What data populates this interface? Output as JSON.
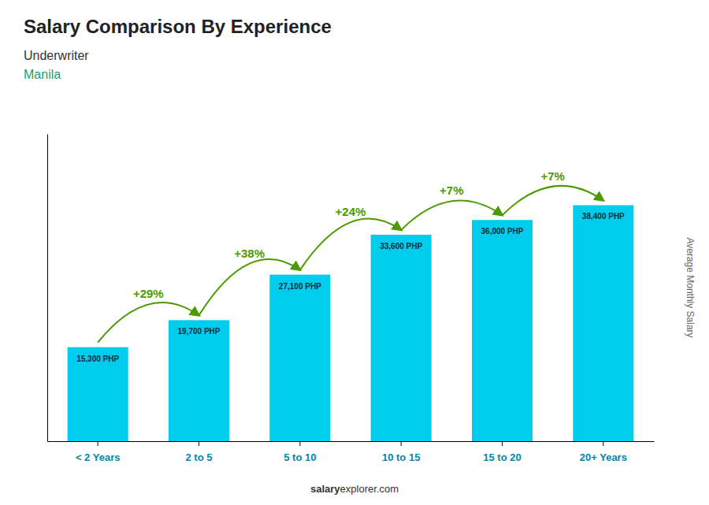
{
  "chart_data": {
    "type": "bar",
    "title": "Salary Comparison By Experience",
    "subtitle": "Underwriter",
    "city": "Manila",
    "categories": [
      "< 2 Years",
      "2 to 5",
      "5 to 10",
      "10 to 15",
      "15 to 20",
      "20+ Years"
    ],
    "values": [
      15300,
      19700,
      27100,
      33600,
      36000,
      38400
    ],
    "value_labels": [
      "15,300 PHP",
      "19,700 PHP",
      "27,100 PHP",
      "33,600 PHP",
      "36,000 PHP",
      "38,400 PHP"
    ],
    "data_labels": true,
    "annotations": [
      "+29%",
      "+38%",
      "+24%",
      "+7%",
      "+7%"
    ],
    "ylabel": "Average Monthly Salary",
    "footer": [
      "salary",
      "explorer.com"
    ],
    "color": "#00ccee",
    "ylim": [
      0,
      50000
    ],
    "tick_labels": "x",
    "grid": false
  }
}
